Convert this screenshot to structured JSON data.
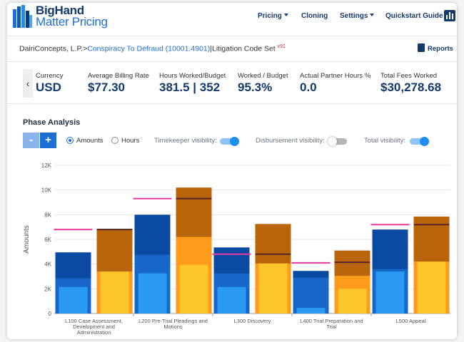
{
  "header": {
    "brand_line1": "BigHand",
    "brand_line2": "Matter Pricing",
    "nav": [
      {
        "label": "Pricing",
        "dropdown": true
      },
      {
        "label": "Cloning",
        "dropdown": false
      },
      {
        "label": "Settings",
        "dropdown": true
      },
      {
        "label": "Quickstart Guide",
        "dropdown": false
      }
    ],
    "chart_icon": "bar-chart-icon"
  },
  "breadcrumb": {
    "client": "DairiConcepts, L.P.",
    "separator": ">",
    "matter": "Conspiracy To Defraud (10001.4901)",
    "code_set": "|Litigation Code Set",
    "version": "v91",
    "reports_label": "Reports"
  },
  "summary": [
    {
      "label": "Currency",
      "value": "USD"
    },
    {
      "label": "Average Billing Rate",
      "value": "$77.30"
    },
    {
      "label": "Hours Worked/Budget",
      "value": "381.5 | 352"
    },
    {
      "label": "Worked / Budget",
      "value": "95.3%"
    },
    {
      "label": "Actual Partner Hours %",
      "value": "0.0"
    },
    {
      "label": "Total Fees Worked",
      "value": "$30,278.68"
    }
  ],
  "phase": {
    "title": "Phase Analysis",
    "minus": "-",
    "plus": "+",
    "amounts_label": "Amounts",
    "hours_label": "Hours",
    "mode": "amounts",
    "timekeeper_label": "Timekeeper visibility:",
    "timekeeper_on": true,
    "disbursement_label": "Disbursement visibility:",
    "disbursement_on": false,
    "total_label": "Total visibility:",
    "total_on": true
  },
  "chart_data": {
    "type": "bar",
    "ylabel": "Amounts",
    "xlabel": "",
    "ylim": [
      0,
      12000
    ],
    "yticks": [
      "0",
      "2K",
      "4K",
      "6K",
      "8K",
      "10K",
      "12K"
    ],
    "categories": [
      "L100 Case Assessment, Development and Administration",
      "L200 Pre-Trial Pleadings and Motions",
      "L300 Discovery",
      "L400 Trial Preparation and Trial",
      "L500 Appeal"
    ],
    "category_lines": [
      [
        "L100 Case Assessment,",
        "Development and",
        "Administration"
      ],
      [
        "L200 Pre-Trial Pleadings and",
        "Motions"
      ],
      [
        "L300 Discovery"
      ],
      [
        "L400 Trial Preparation and",
        "Trial"
      ],
      [
        "L500 Appeal"
      ]
    ],
    "budget_group": {
      "total": [
        4950,
        8000,
        5350,
        3450,
        6800
      ],
      "mid": [
        2850,
        4750,
        3250,
        2900,
        3600
      ],
      "low": [
        2150,
        3250,
        2150,
        450,
        3400
      ],
      "budget_marker": [
        6800,
        9300,
        4800,
        4100,
        7200
      ],
      "colors": {
        "total": "#0b4aa2",
        "mid": "#1766c9",
        "low": "#2b9af3",
        "marker": "#e73b9f"
      }
    },
    "actual_group": {
      "total": [
        6800,
        10200,
        7250,
        5100,
        7850
      ],
      "mid": [
        3400,
        6200,
        4050,
        3050,
        4200
      ],
      "low": [
        3400,
        3950,
        4050,
        2000,
        4200
      ],
      "actual_marker": [
        6800,
        9300,
        4800,
        4150,
        7200
      ],
      "colors": {
        "total": "#b9650c",
        "mid": "#ff9a1a",
        "low": "#ffc629",
        "marker": "#5a2326"
      }
    }
  }
}
